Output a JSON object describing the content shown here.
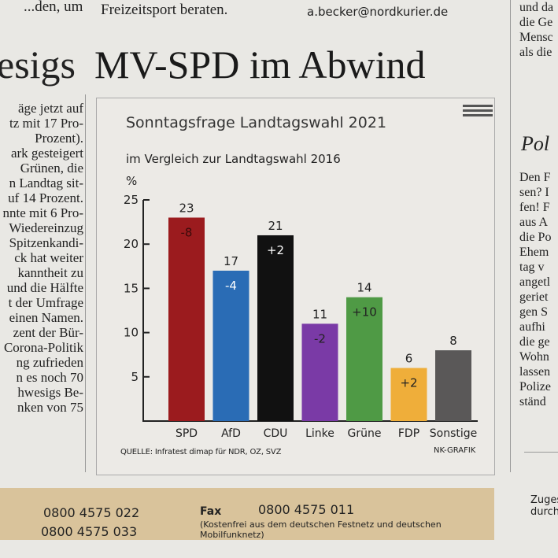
{
  "top": {
    "left_fragment": "...den, um",
    "middle": "Freizeitsport beraten.",
    "contact_email": "a.becker@nordkurier.de",
    "right_lines": [
      "und da",
      "die Ge",
      "Mensc",
      "als die"
    ]
  },
  "headline": {
    "fragment": "esigs",
    "title": "MV-SPD im Abwind"
  },
  "left_column": [
    "äge jetzt auf",
    "tz mit 17 Pro-",
    "Prozent).",
    "ark gesteigert",
    "Grünen, die",
    "n Landtag sit-",
    "uf 14 Prozent.",
    "nnte mit 6 Pro-",
    "Wiedereinzug",
    "Spitzenkandi-",
    "ck hat weiter",
    "kanntheit zu",
    "und die Hälfte",
    "t der Umfrage",
    "einen Namen.",
    "zent der Bür-",
    "Corona-Politik",
    "ng zufrieden",
    "n es noch 70",
    "hwesigs Be-",
    "nken von 75"
  ],
  "right_column": {
    "heading": "Pol",
    "lines": [
      "Den F",
      "sen? I",
      "fen! F",
      "aus A",
      "die Po",
      "Ehem",
      "tag v",
      "angetl",
      "geriet",
      "gen S",
      "aufhi",
      "die ge",
      "Wohn",
      "lassen",
      "Polize",
      "ständ"
    ],
    "bottom": [
      "Zuges",
      "durch"
    ]
  },
  "chart_data": {
    "type": "bar",
    "title": "Sonntagsfrage Landtagswahl 2021",
    "subtitle": "im Vergleich zur Landtagswahl 2016",
    "ylabel": "%",
    "ylim": [
      0,
      25
    ],
    "yticks": [
      5,
      10,
      15,
      20,
      25
    ],
    "categories": [
      "SPD",
      "AfD",
      "CDU",
      "Linke",
      "Grüne",
      "FDP",
      "Sonstige"
    ],
    "values": [
      23,
      17,
      21,
      11,
      14,
      6,
      8
    ],
    "changes": [
      "-8",
      "-4",
      "+2",
      "-2",
      "+10",
      "+2",
      ""
    ],
    "colors": [
      "#9b1b1e",
      "#2a6cb5",
      "#111111",
      "#7a3aa6",
      "#4f9a45",
      "#efae3a",
      "#5a5858"
    ],
    "change_colors": [
      "#3a0a0a",
      "#ffffff",
      "#ffffff",
      "#222222",
      "#222222",
      "#222222",
      ""
    ],
    "source": "QUELLE: Infratest dimap für NDR, OZ, SVZ",
    "credit": "NK-GRAFIK"
  },
  "footer": {
    "phone1": "0800 4575 022",
    "phone2": "0800 4575 033",
    "fax_label": "Fax",
    "fax": "0800 4575 011",
    "note": "(Kostenfrei aus dem deutschen Festnetz und deutschen Mobilfunknetz)"
  }
}
